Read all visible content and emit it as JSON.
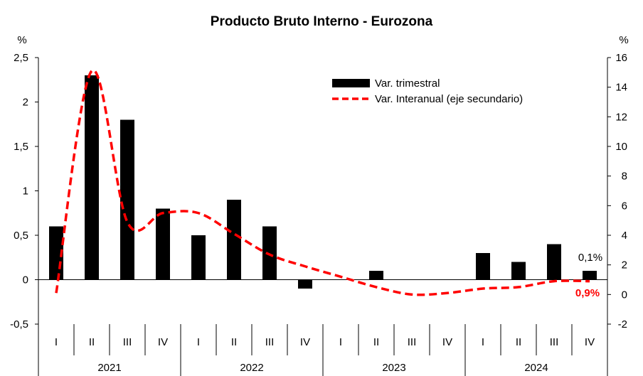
{
  "chart_data": {
    "type": "bar+line",
    "title": "Producto Bruto Interno - Eurozona",
    "y_left_unit": "%",
    "y_right_unit": "%",
    "y_left_range": [
      -0.5,
      2.5
    ],
    "y_left_ticks": [
      "-0,5",
      "0",
      "0,5",
      "1",
      "1,5",
      "2",
      "2,5"
    ],
    "y_left_tick_values": [
      -0.5,
      0,
      0.5,
      1,
      1.5,
      2,
      2.5
    ],
    "y_right_range": [
      -2,
      16
    ],
    "y_right_ticks": [
      "-2",
      "0",
      "2",
      "4",
      "6",
      "8",
      "10",
      "12",
      "14",
      "16"
    ],
    "y_right_tick_values": [
      -2,
      0,
      2,
      4,
      6,
      8,
      10,
      12,
      14,
      16
    ],
    "quarters": [
      "I",
      "II",
      "III",
      "IV",
      "I",
      "II",
      "III",
      "IV",
      "I",
      "II",
      "III",
      "IV",
      "I",
      "II",
      "III",
      "IV"
    ],
    "years": [
      "2021",
      "2022",
      "2023",
      "2024"
    ],
    "series": [
      {
        "name": "Var. trimestral",
        "type": "bar",
        "axis": "left",
        "color": "#000000",
        "values": [
          0.6,
          2.3,
          1.8,
          0.8,
          0.5,
          0.9,
          0.6,
          -0.1,
          0.0,
          0.1,
          0.0,
          0.0,
          0.3,
          0.2,
          0.4,
          0.1
        ]
      },
      {
        "name": "Var. Interanual (eje secundario)",
        "type": "line",
        "axis": "right",
        "color": "#ff0000",
        "style": "dashed",
        "values": [
          0.1,
          15.1,
          4.9,
          5.5,
          5.5,
          4.1,
          2.7,
          1.9,
          1.2,
          0.5,
          0.0,
          0.1,
          0.4,
          0.5,
          0.9,
          0.9
        ]
      }
    ],
    "legend": {
      "position": "top-right",
      "entries": [
        "Var. trimestral",
        "Var. Interanual (eje secundario)"
      ]
    },
    "annotations": [
      {
        "text": "0,1%",
        "series": "Var. trimestral",
        "index": 15,
        "color": "#000000"
      },
      {
        "text": "0,9%",
        "series": "Var. Interanual (eje secundario)",
        "index": 15,
        "color": "#ff0000"
      }
    ]
  }
}
